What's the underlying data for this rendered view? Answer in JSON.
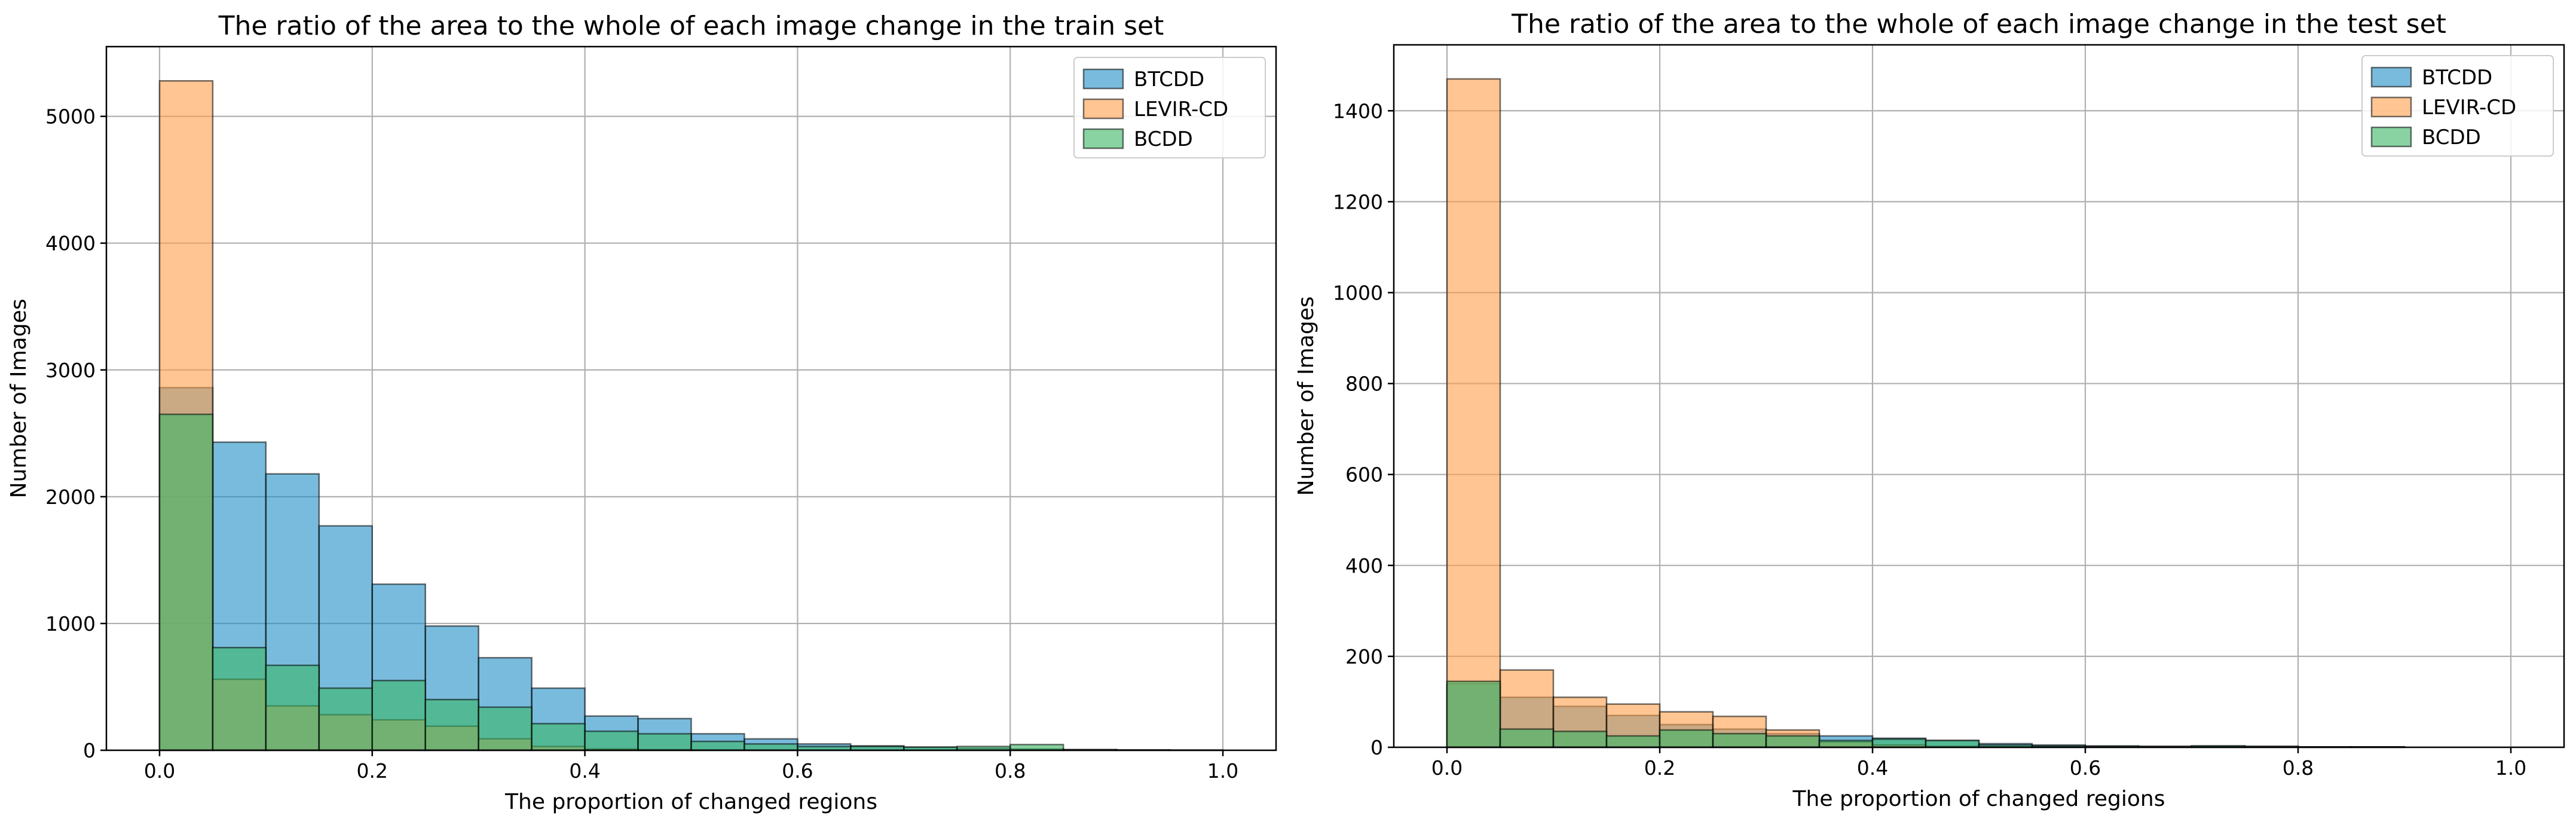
{
  "chart_data": [
    {
      "type": "bar",
      "title": "The ratio of the area to the whole of each image change in the train set",
      "xlabel": "The proportion of changed regions",
      "ylabel": "Number of Images",
      "xlim": [
        -0.05,
        1.05
      ],
      "ylim": [
        0,
        5550
      ],
      "xticks": [
        "0.0",
        "0.2",
        "0.4",
        "0.6",
        "0.8",
        "1.0"
      ],
      "yticks": [
        "0",
        "1000",
        "2000",
        "3000",
        "4000",
        "5000"
      ],
      "grid": true,
      "legend_position": "top-right",
      "bin_width": 0.05,
      "bins": [
        0.0,
        0.05,
        0.1,
        0.15,
        0.2,
        0.25,
        0.3,
        0.35,
        0.4,
        0.45,
        0.5,
        0.55,
        0.6,
        0.65,
        0.7,
        0.75,
        0.8,
        0.85,
        0.9,
        0.95
      ],
      "series": [
        {
          "name": "BTCDD",
          "color": "#1f8dc4",
          "values": [
            2860,
            2430,
            2180,
            1770,
            1310,
            980,
            730,
            490,
            270,
            250,
            130,
            90,
            50,
            35,
            25,
            15,
            10,
            5,
            3,
            2
          ]
        },
        {
          "name": "LEVIR-CD",
          "color": "#ff9e4a",
          "values": [
            5280,
            560,
            350,
            280,
            240,
            190,
            90,
            30,
            10,
            5,
            2,
            1,
            0,
            0,
            0,
            0,
            0,
            0,
            0,
            0
          ]
        },
        {
          "name": "BCDD",
          "color": "#3ab566",
          "values": [
            2650,
            810,
            670,
            490,
            550,
            400,
            340,
            210,
            150,
            130,
            70,
            50,
            30,
            30,
            25,
            30,
            45,
            5,
            2,
            1
          ]
        }
      ]
    },
    {
      "type": "bar",
      "title": "The ratio of the area to the whole of each image change in the test set",
      "xlabel": "The proportion of changed regions",
      "ylabel": "Number of Images",
      "xlim": [
        -0.05,
        1.05
      ],
      "ylim": [
        0,
        1545
      ],
      "xticks": [
        "0.0",
        "0.2",
        "0.4",
        "0.6",
        "0.8",
        "1.0"
      ],
      "yticks": [
        "0",
        "200",
        "400",
        "600",
        "800",
        "1000",
        "1200",
        "1400"
      ],
      "grid": true,
      "legend_position": "top-right",
      "bin_width": 0.05,
      "bins": [
        0.0,
        0.05,
        0.1,
        0.15,
        0.2,
        0.25,
        0.3,
        0.35,
        0.4,
        0.45,
        0.5,
        0.55,
        0.6,
        0.65,
        0.7,
        0.75,
        0.8,
        0.85,
        0.9,
        0.95
      ],
      "series": [
        {
          "name": "BTCDD",
          "color": "#1f8dc4",
          "values": [
            140,
            110,
            90,
            70,
            50,
            40,
            30,
            25,
            20,
            15,
            8,
            5,
            3,
            2,
            3,
            2,
            1,
            1,
            0,
            0
          ]
        },
        {
          "name": "LEVIR-CD",
          "color": "#ff9e4a",
          "values": [
            1470,
            170,
            110,
            95,
            78,
            68,
            38,
            12,
            5,
            2,
            1,
            0,
            0,
            0,
            0,
            0,
            0,
            0,
            0,
            0
          ]
        },
        {
          "name": "BCDD",
          "color": "#3ab566",
          "values": [
            145,
            40,
            35,
            25,
            38,
            30,
            25,
            15,
            18,
            15,
            5,
            3,
            2,
            2,
            3,
            2,
            1,
            1,
            0,
            0
          ]
        }
      ]
    }
  ]
}
